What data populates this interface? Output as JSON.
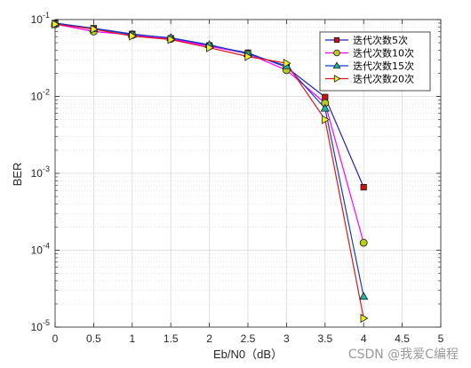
{
  "chart_data": {
    "type": "line",
    "xlabel": "Eb/N0（dB）",
    "ylabel": "BER",
    "xlim": [
      0,
      5
    ],
    "ylim": [
      1e-05,
      0.1
    ],
    "y_scale": "log",
    "x_ticks": [
      "0",
      "0.5",
      "1",
      "1.5",
      "2",
      "2.5",
      "3",
      "3.5",
      "4",
      "4.5",
      "5"
    ],
    "y_tick_labels": [
      {
        "base": "10",
        "exp": "-5"
      },
      {
        "base": "10",
        "exp": "-4"
      },
      {
        "base": "10",
        "exp": "-3"
      },
      {
        "base": "10",
        "exp": "-2"
      },
      {
        "base": "10",
        "exp": "-1"
      }
    ],
    "grid": true,
    "minor_grid": true,
    "legend_position": "top-right",
    "series": [
      {
        "name": "迭代次数5次",
        "color": "#1f1fbf",
        "marker": "square",
        "marker_fill": "#cc1111",
        "x": [
          0,
          0.5,
          1,
          1.5,
          2,
          2.5,
          3,
          3.5,
          4
        ],
        "y": [
          0.09,
          0.077,
          0.065,
          0.057,
          0.046,
          0.037,
          0.024,
          0.0098,
          0.00066
        ]
      },
      {
        "name": "迭代次数10次",
        "color": "#ff00ff",
        "marker": "circle",
        "marker_fill": "#b8cc1a",
        "x": [
          0,
          0.5,
          1,
          1.5,
          2,
          2.5,
          3,
          3.5,
          4
        ],
        "y": [
          0.087,
          0.07,
          0.063,
          0.056,
          0.045,
          0.036,
          0.022,
          0.0082,
          0.000125
        ]
      },
      {
        "name": "迭代次数15次",
        "color": "#0f3fc7",
        "marker": "triangle-up",
        "marker_fill": "#22b5a0",
        "x": [
          0,
          0.5,
          1,
          1.5,
          2,
          2.5,
          3,
          3.5,
          4
        ],
        "y": [
          0.088,
          0.076,
          0.064,
          0.058,
          0.047,
          0.036,
          0.025,
          0.007,
          2.5e-05
        ]
      },
      {
        "name": "迭代次数20次",
        "color": "#e01515",
        "marker": "triangle-right",
        "marker_fill": "#eeee22",
        "x": [
          0,
          0.5,
          1,
          1.5,
          2,
          2.5,
          3,
          3.5,
          4
        ],
        "y": [
          0.087,
          0.075,
          0.061,
          0.055,
          0.043,
          0.033,
          0.027,
          0.005,
          1.3e-05
        ]
      }
    ]
  },
  "watermark": "CSDN @我爱C编程"
}
